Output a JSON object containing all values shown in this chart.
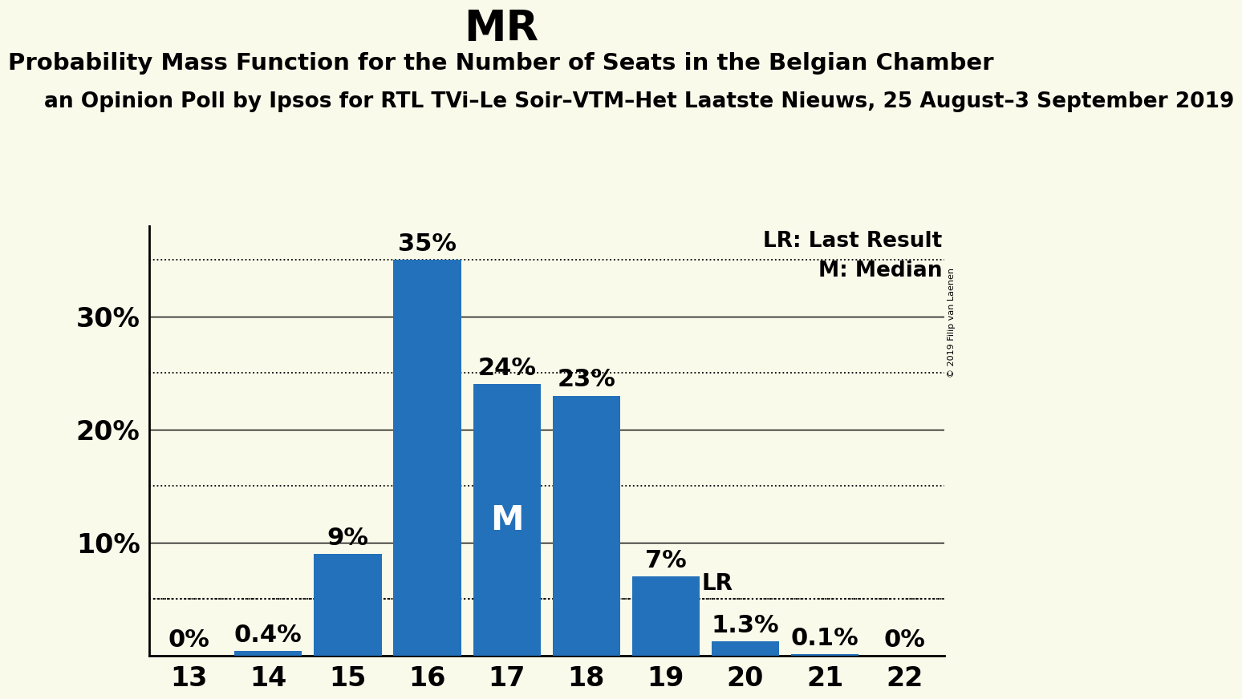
{
  "title": "MR",
  "subtitle": "Probability Mass Function for the Number of Seats in the Belgian Chamber",
  "subsubtitle": "an Opinion Poll by Ipsos for RTL TVi–Le Soir–VTM–Het Laatste Nieuws, 25 August–3 September 2019",
  "copyright": "© 2019 Filip van Laenen",
  "seats": [
    13,
    14,
    15,
    16,
    17,
    18,
    19,
    20,
    21,
    22
  ],
  "probabilities": [
    0.0,
    0.4,
    9.0,
    35.0,
    24.0,
    23.0,
    7.0,
    1.3,
    0.1,
    0.0
  ],
  "bar_color": "#2471bb",
  "background_color": "#fafaeb",
  "median_seat": 17,
  "lr_value": 5.0,
  "lr_seat": 20,
  "yticks_solid": [
    10,
    20,
    30
  ],
  "yticks_dotted": [
    5,
    15,
    25,
    35
  ],
  "ylim": [
    0,
    38
  ],
  "ylabel_fontsize": 24,
  "xlabel_fontsize": 24,
  "title_fontsize": 38,
  "subtitle_fontsize": 21,
  "subsubtitle_fontsize": 19,
  "bar_label_fontsize": 22,
  "median_label_fontsize": 30,
  "lr_label_fontsize": 20,
  "legend_fontsize": 19,
  "copyright_fontsize": 8
}
